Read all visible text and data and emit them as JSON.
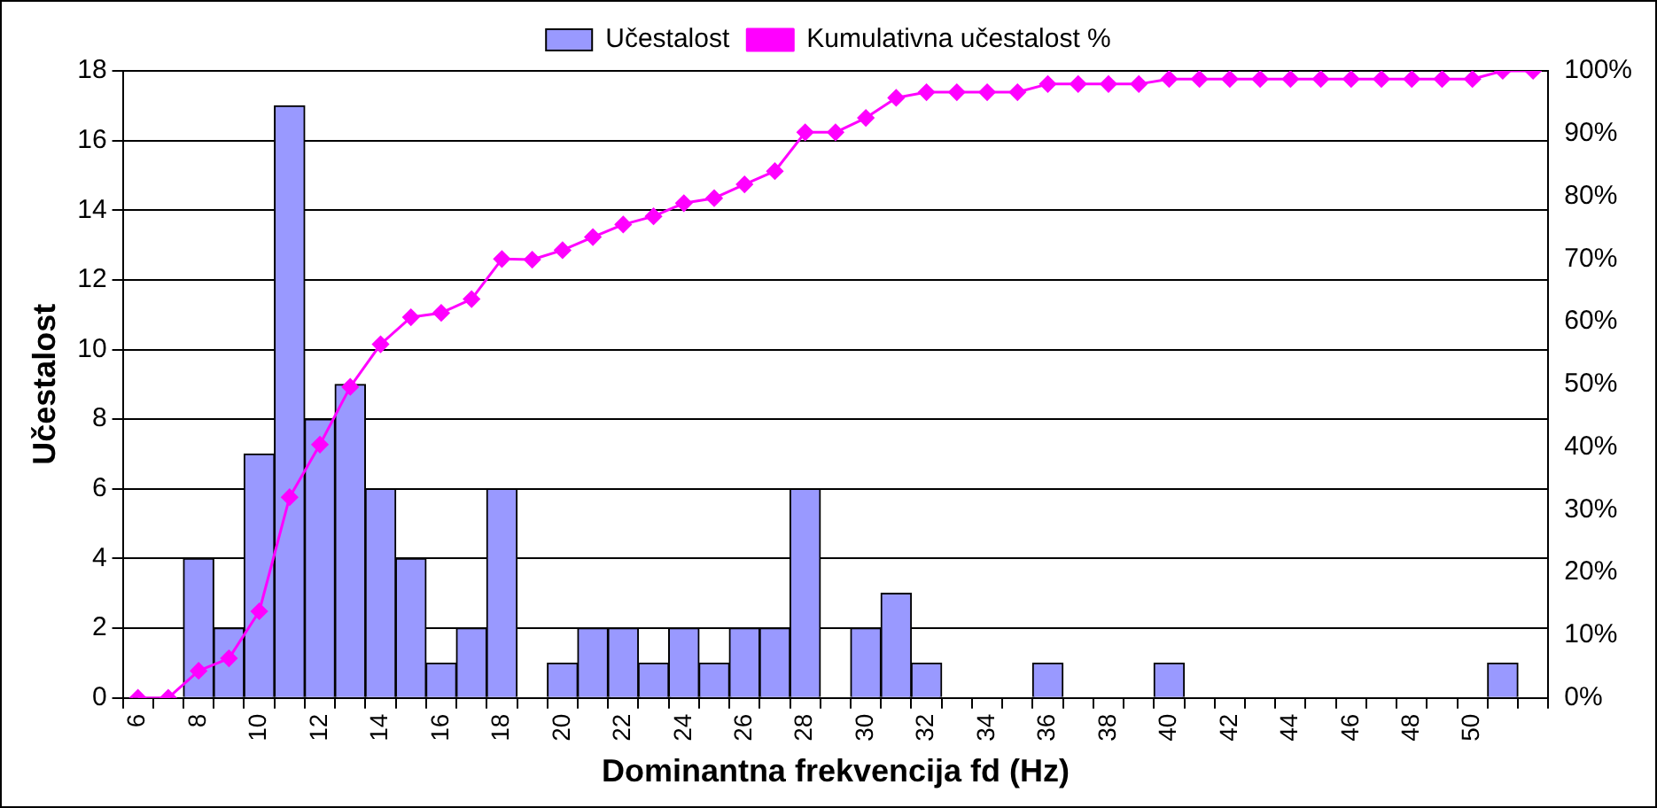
{
  "chart_data": {
    "type": "bar",
    "xlabel": "Dominantna frekvencija fd (Hz)",
    "ylabel": "Učestalost",
    "categories": [
      "6",
      null,
      "8",
      null,
      "10",
      null,
      "12",
      null,
      "14",
      null,
      "16",
      null,
      "18",
      null,
      "20",
      null,
      "22",
      null,
      "24",
      null,
      "26",
      null,
      "28",
      null,
      "30",
      null,
      "32",
      null,
      "34",
      null,
      "36",
      null,
      "38",
      null,
      "40",
      null,
      "42",
      null,
      "44",
      null,
      "46",
      null,
      "48",
      null,
      "50",
      null,
      null
    ],
    "series": [
      {
        "name": "Učestalost",
        "color": "#9999ff",
        "values": [
          0,
          0,
          4,
          2,
          7,
          17,
          8,
          9,
          6,
          4,
          1,
          2,
          6,
          0,
          1,
          2,
          2,
          1,
          2,
          1,
          2,
          2,
          6,
          0,
          2,
          3,
          1,
          0,
          0,
          0,
          1,
          0,
          0,
          0,
          1,
          0,
          0,
          0,
          0,
          0,
          0,
          0,
          0,
          0,
          0,
          1,
          0
        ]
      },
      {
        "name": "Kumulativna učestalost %",
        "type": "line",
        "axis": "y2",
        "color": "#ff00ff",
        "marker": "diamond",
        "values": [
          0,
          0,
          4.3,
          6.3,
          13.8,
          32,
          40.4,
          49.6,
          56.4,
          60.7,
          61.4,
          63.6,
          70,
          69.9,
          71.4,
          73.5,
          75.5,
          76.8,
          78.9,
          79.7,
          81.9,
          84,
          90.2,
          90.2,
          92.5,
          95.7,
          96.6,
          96.6,
          96.6,
          96.6,
          97.9,
          97.9,
          97.9,
          97.9,
          98.7,
          98.7,
          98.7,
          98.7,
          98.7,
          98.7,
          98.7,
          98.7,
          98.7,
          98.7,
          98.7,
          100,
          100
        ]
      }
    ],
    "ylim": [
      0,
      18
    ],
    "yticks": [
      0,
      2,
      4,
      6,
      8,
      10,
      12,
      14,
      16,
      18
    ],
    "y2lim": [
      0,
      100
    ],
    "y2ticks": [
      {
        "value": 0,
        "label": "0%"
      },
      {
        "value": 10,
        "label": "10%"
      },
      {
        "value": 20,
        "label": "20%"
      },
      {
        "value": 30,
        "label": "30%"
      },
      {
        "value": 40,
        "label": "40%"
      },
      {
        "value": 50,
        "label": "50%"
      },
      {
        "value": 60,
        "label": "60%"
      },
      {
        "value": 70,
        "label": "70%"
      },
      {
        "value": 80,
        "label": "80%"
      },
      {
        "value": 90,
        "label": "90%"
      },
      {
        "value": 100,
        "label": "100%"
      }
    ],
    "grid": "y",
    "legend": "top"
  }
}
